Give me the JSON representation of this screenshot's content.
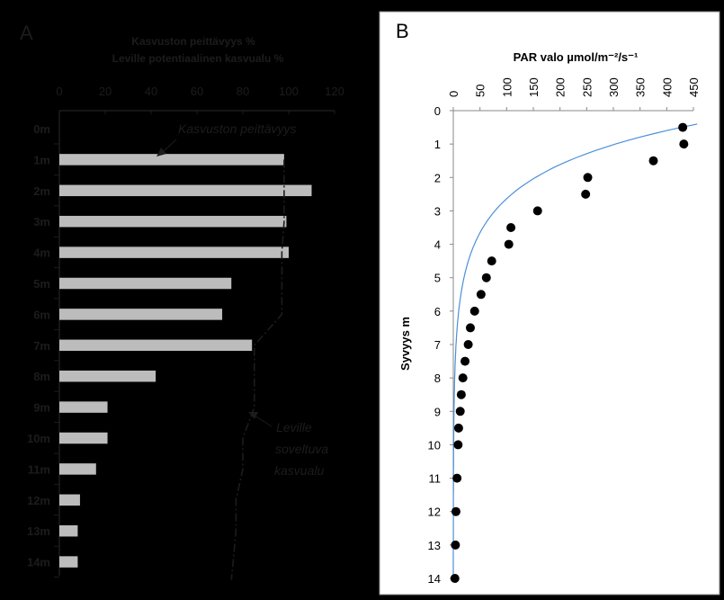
{
  "chart_data": [
    {
      "panel_label": "A",
      "type": "bar",
      "orientation": "horizontal",
      "title_lines": [
        "Kasvuston peittävyys %",
        "Leville potentiaalinen kasvualu %"
      ],
      "xlim": [
        0,
        120
      ],
      "xticks": [
        0,
        20,
        40,
        60,
        80,
        100,
        120
      ],
      "categories": [
        "0m",
        "1m",
        "2m",
        "3m",
        "4m",
        "5m",
        "6m",
        "7m",
        "8m",
        "9m",
        "10m",
        "11m",
        "12m",
        "13m",
        "14m"
      ],
      "values": [
        0,
        98,
        110,
        99,
        100,
        75,
        71,
        84,
        42,
        21,
        21,
        16,
        9,
        8,
        8
      ],
      "line_values": [
        null,
        98,
        98,
        98,
        97,
        97,
        97,
        85,
        85,
        85,
        80,
        80,
        77,
        77,
        75
      ],
      "annotations": [
        "Kasvuston peittävyys",
        "Leville",
        "soveltuva",
        "kasvualu"
      ],
      "grid": false
    },
    {
      "panel_label": "B",
      "type": "scatter",
      "xlabel": "PAR valo µmol/m⁻²/s⁻¹",
      "ylabel": "Syvyys m",
      "xlim": [
        0,
        450
      ],
      "ylim": [
        0,
        14
      ],
      "xticks": [
        0,
        50,
        100,
        150,
        200,
        250,
        300,
        350,
        400,
        450
      ],
      "yticks": [
        0,
        1,
        2,
        3,
        4,
        5,
        6,
        7,
        8,
        9,
        10,
        11,
        12,
        13,
        14
      ],
      "y_inverted": true,
      "points": [
        {
          "x": 430,
          "y": 0.5
        },
        {
          "x": 432,
          "y": 1.0
        },
        {
          "x": 375,
          "y": 1.5
        },
        {
          "x": 252,
          "y": 2.0
        },
        {
          "x": 248,
          "y": 2.5
        },
        {
          "x": 158,
          "y": 3.0
        },
        {
          "x": 108,
          "y": 3.5
        },
        {
          "x": 104,
          "y": 4.0
        },
        {
          "x": 72,
          "y": 4.5
        },
        {
          "x": 62,
          "y": 5.0
        },
        {
          "x": 52,
          "y": 5.5
        },
        {
          "x": 40,
          "y": 6.0
        },
        {
          "x": 32,
          "y": 6.5
        },
        {
          "x": 28,
          "y": 7.0
        },
        {
          "x": 22,
          "y": 7.5
        },
        {
          "x": 18,
          "y": 8.0
        },
        {
          "x": 15,
          "y": 8.5
        },
        {
          "x": 13,
          "y": 9.0
        },
        {
          "x": 10,
          "y": 9.5
        },
        {
          "x": 9,
          "y": 10.0
        },
        {
          "x": 7,
          "y": 11.0
        },
        {
          "x": 5,
          "y": 12.0
        },
        {
          "x": 4,
          "y": 13.0
        },
        {
          "x": 3,
          "y": 14.0
        }
      ],
      "trend": {
        "type": "exponential",
        "a": 600,
        "b": 0.68
      },
      "colors": {
        "points": "#000000",
        "trend": "#4a90d9"
      }
    }
  ]
}
